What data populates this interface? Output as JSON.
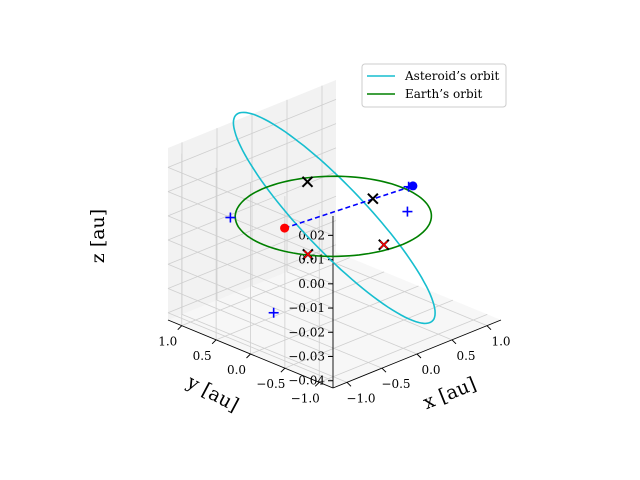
{
  "chart_data": {
    "type": "line3d",
    "xlabel": "x [au]",
    "ylabel": "y [au]",
    "zlabel": "z [au]",
    "x_ticks": [
      -1.0,
      -0.5,
      0.0,
      0.5,
      1.0
    ],
    "y_ticks": [
      -1.0,
      -0.5,
      0.0,
      0.5,
      1.0
    ],
    "z_ticks": [
      -0.04,
      -0.03,
      -0.02,
      -0.01,
      0.0,
      0.01,
      0.02
    ],
    "x_tick_labels": [
      "−1.0",
      "−0.5",
      "0.0",
      "0.5",
      "1.0"
    ],
    "y_tick_labels": [
      "−1.0",
      "−0.5",
      "0.0",
      "0.5",
      "1.0"
    ],
    "z_tick_labels": [
      "−0.04",
      "−0.03",
      "−0.02",
      "−0.01",
      "0.00",
      "0.01",
      "0.02"
    ],
    "xlim": [
      -1.2,
      1.2
    ],
    "ylim": [
      -1.2,
      1.2
    ],
    "zlim": [
      -0.043,
      0.028
    ],
    "grid": true,
    "legend_position": "top-right",
    "series": [
      {
        "name": "Asteroid’s orbit",
        "color": "#17becf",
        "style": "solid",
        "orbit": {
          "a": 1.03,
          "e": 0.05,
          "inclination_deg": 2.2,
          "node_deg": 43.0,
          "peri_deg": 0.0
        }
      },
      {
        "name": "Earth’s orbit",
        "color": "#008000",
        "style": "solid",
        "orbit": {
          "a": 1.0,
          "e": 0.0167,
          "inclination_deg": 0.0,
          "node_deg": 0.0,
          "peri_deg": 0.0
        }
      }
    ],
    "segment": {
      "color": "#0000ff",
      "style": "dashed",
      "from": [
        -0.32,
        0.4,
        -0.006
      ],
      "to": [
        0.58,
        -0.55,
        0.012
      ]
    },
    "points": [
      {
        "kind": "dot",
        "color": "#ff0000",
        "xyz": [
          -0.32,
          0.4,
          -0.006
        ]
      },
      {
        "kind": "dot",
        "color": "#0000ff",
        "xyz": [
          0.58,
          -0.55,
          0.012
        ]
      },
      {
        "kind": "plus",
        "color": "#0000ff",
        "xyz": [
          -0.78,
          0.72,
          0.0
        ]
      },
      {
        "kind": "plus",
        "color": "#0000ff",
        "xyz": [
          0.6,
          -0.45,
          0.0
        ]
      },
      {
        "kind": "plus",
        "color": "#0000ff",
        "xyz": [
          -0.82,
          0.05,
          -0.031
        ]
      },
      {
        "kind": "plus",
        "color": "#0000ff",
        "xyz": [
          0.45,
          -0.62,
          0.014
        ]
      },
      {
        "kind": "cross",
        "color": "#000000",
        "xyz": [
          0.4,
          0.8,
          0.0
        ]
      },
      {
        "kind": "cross",
        "color": "#000000",
        "xyz": [
          0.45,
          -0.1,
          0.003
        ]
      },
      {
        "kind": "cross",
        "color": "#000000",
        "xyz": [
          -0.4,
          -0.02,
          -0.011
        ]
      },
      {
        "kind": "cross",
        "color": "#000000",
        "xyz": [
          -0.15,
          -0.87,
          0.0
        ]
      },
      {
        "kind": "cross",
        "color": "#ff0000",
        "xyz": [
          -0.15,
          -0.87,
          0.0
        ]
      },
      {
        "kind": "cross",
        "color": "#ff0000",
        "xyz": [
          -0.4,
          -0.02,
          -0.011
        ]
      }
    ]
  }
}
